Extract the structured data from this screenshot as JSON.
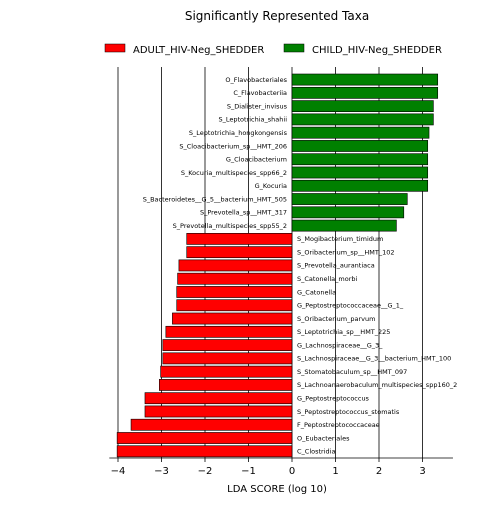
{
  "chart_data": {
    "type": "bar",
    "orientation": "horizontal",
    "title": "Significantly Represented Taxa",
    "xlabel": "LDA SCORE (log 10)",
    "ylabel": "",
    "xlim": [
      -4.2,
      3.7
    ],
    "xticks": [
      -4,
      -3,
      -2,
      -1,
      0,
      1,
      2,
      3
    ],
    "xtick_labels": [
      "−4",
      "−3",
      "−2",
      "−1",
      "0",
      "1",
      "2",
      "3"
    ],
    "grid": "vertical",
    "legend_position": "top",
    "series": [
      {
        "name": "ADULT_HIV-Neg_SHEDDER",
        "color": "#ff0000"
      },
      {
        "name": "CHILD_HIV-Neg_SHEDDER",
        "color": "#008000"
      }
    ],
    "bars": [
      {
        "label": "O_Flavobacteriales",
        "value": 3.35,
        "group": "CHILD_HIV-Neg_SHEDDER"
      },
      {
        "label": "C_Flavobacteriia",
        "value": 3.35,
        "group": "CHILD_HIV-Neg_SHEDDER"
      },
      {
        "label": "S_Dialister_invisus",
        "value": 3.25,
        "group": "CHILD_HIV-Neg_SHEDDER"
      },
      {
        "label": "S_Leptotrichia_shahii",
        "value": 3.25,
        "group": "CHILD_HIV-Neg_SHEDDER"
      },
      {
        "label": "S_Leptotrichia_hongkongensis",
        "value": 3.15,
        "group": "CHILD_HIV-Neg_SHEDDER"
      },
      {
        "label": "S_Cloacibacterium_sp__HMT_206",
        "value": 3.12,
        "group": "CHILD_HIV-Neg_SHEDDER"
      },
      {
        "label": "G_Cloacibacterium",
        "value": 3.12,
        "group": "CHILD_HIV-Neg_SHEDDER"
      },
      {
        "label": "S_Kocuria_multispecies_spp66_2",
        "value": 3.12,
        "group": "CHILD_HIV-Neg_SHEDDER"
      },
      {
        "label": "G_Kocuria",
        "value": 3.12,
        "group": "CHILD_HIV-Neg_SHEDDER"
      },
      {
        "label": "S_Bacteroidetes__G_5__bacterium_HMT_505",
        "value": 2.65,
        "group": "CHILD_HIV-Neg_SHEDDER"
      },
      {
        "label": "S_Prevotella_sp__HMT_317",
        "value": 2.57,
        "group": "CHILD_HIV-Neg_SHEDDER"
      },
      {
        "label": "S_Prevotella_multispecies_spp55_2",
        "value": 2.4,
        "group": "CHILD_HIV-Neg_SHEDDER"
      },
      {
        "label": "S_Mogibacterium_timidum",
        "value": -2.42,
        "group": "ADULT_HIV-Neg_SHEDDER"
      },
      {
        "label": "S_Oribacterium_sp__HMT_102",
        "value": -2.42,
        "group": "ADULT_HIV-Neg_SHEDDER"
      },
      {
        "label": "S_Prevotella_aurantiaca",
        "value": -2.6,
        "group": "ADULT_HIV-Neg_SHEDDER"
      },
      {
        "label": "S_Catonella_morbi",
        "value": -2.63,
        "group": "ADULT_HIV-Neg_SHEDDER"
      },
      {
        "label": "G_Catonella",
        "value": -2.65,
        "group": "ADULT_HIV-Neg_SHEDDER"
      },
      {
        "label": "G_Peptostreptococcaceae__G_1_",
        "value": -2.65,
        "group": "ADULT_HIV-Neg_SHEDDER"
      },
      {
        "label": "S_Oribacterium_parvum",
        "value": -2.75,
        "group": "ADULT_HIV-Neg_SHEDDER"
      },
      {
        "label": "S_Leptotrichia_sp__HMT_225",
        "value": -2.9,
        "group": "ADULT_HIV-Neg_SHEDDER"
      },
      {
        "label": "G_Lachnospiraceae__G_3_",
        "value": -2.97,
        "group": "ADULT_HIV-Neg_SHEDDER"
      },
      {
        "label": "S_Lachnospiraceae__G_3__bacterium_HMT_100",
        "value": -2.97,
        "group": "ADULT_HIV-Neg_SHEDDER"
      },
      {
        "label": "S_Stomatobaculum_sp__HMT_097",
        "value": -3.02,
        "group": "ADULT_HIV-Neg_SHEDDER"
      },
      {
        "label": "S_Lachnoanaerobaculum_multispecies_spp160_2",
        "value": -3.05,
        "group": "ADULT_HIV-Neg_SHEDDER"
      },
      {
        "label": "G_Peptostreptococcus",
        "value": -3.38,
        "group": "ADULT_HIV-Neg_SHEDDER"
      },
      {
        "label": "S_Peptostreptococcus_stomatis",
        "value": -3.38,
        "group": "ADULT_HIV-Neg_SHEDDER"
      },
      {
        "label": "F_Peptostreptococcaceae",
        "value": -3.7,
        "group": "ADULT_HIV-Neg_SHEDDER"
      },
      {
        "label": "O_Eubacteriales",
        "value": -4.02,
        "group": "ADULT_HIV-Neg_SHEDDER"
      },
      {
        "label": "C_Clostridia",
        "value": -4.02,
        "group": "ADULT_HIV-Neg_SHEDDER"
      }
    ]
  }
}
